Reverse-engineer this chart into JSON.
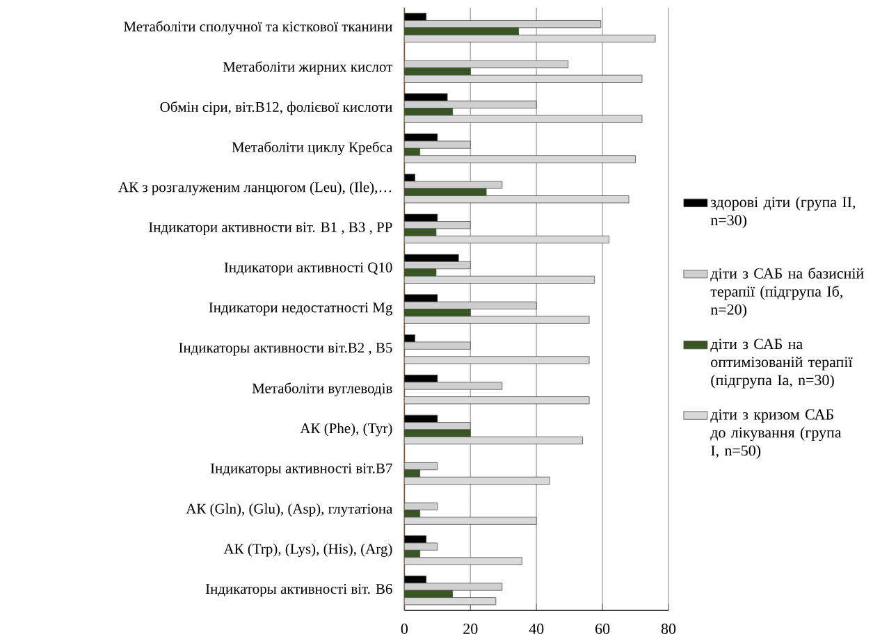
{
  "chart_data": {
    "type": "bar",
    "orientation": "horizontal",
    "categories": [
      "Метаболіти  сполучної  та кісткової тканини",
      "Метаболіти жирних  кислот",
      "Обмін сіри,  віт.В12, фолієвої  кислоти",
      "Метаболіти циклу  Кребса",
      "АК з розгалуженим  ланцюгом  (Leu), (Ile),…",
      "Індикатори активности віт. В1 , В3 , РР",
      "Індикатори активності Q10",
      "Індикатори недостатності Mg",
      "Індикаторы активности віт.В2 , В5",
      "Метаболіти вуглеводів",
      "АК  (Phe), (Tyr)",
      "Індикаторы активності віт.В7",
      "АК  (Gln),  (Glu),  (Asp), глутатіона",
      "АК (Trp), (Lys),  (His),  (Arg)",
      "Індикаторы активності віт. В6"
    ],
    "series": [
      {
        "name": "здорові діти (група ІІ, n=30)",
        "color": "#000000",
        "values": [
          6.6,
          null,
          13,
          10,
          3.2,
          10,
          16.4,
          10,
          3.2,
          10,
          10,
          null,
          null,
          6.6,
          6.6
        ]
      },
      {
        "name": "діти з САБ  на базисній терапії (підгрупа Іб, n=20)",
        "color": "#cfcfcf",
        "values": [
          59.5,
          49.6,
          40,
          20,
          29.6,
          20,
          20,
          40,
          20,
          29.6,
          20,
          10,
          10,
          10,
          29.6
        ]
      },
      {
        "name": "діти з САБ на оптимізованій терапії (підгрупа Іа, n=30)",
        "color": "#375623",
        "values": [
          34.6,
          20,
          14.6,
          4.7,
          24.8,
          9.6,
          9.6,
          20,
          null,
          null,
          20,
          4.7,
          4.7,
          4.7,
          14.6
        ]
      },
      {
        "name": "діти з кризом САБ до лікування (група І, n=50)",
        "color": "#d9d9d9",
        "values": [
          76,
          72,
          72,
          70,
          68,
          62,
          57.6,
          56,
          56,
          56,
          54,
          44,
          40,
          35.6,
          27.7
        ]
      }
    ],
    "xlim": [
      0,
      80
    ],
    "xticks": [
      0,
      20,
      40,
      60,
      80
    ],
    "grid": "x",
    "legend": "right"
  }
}
